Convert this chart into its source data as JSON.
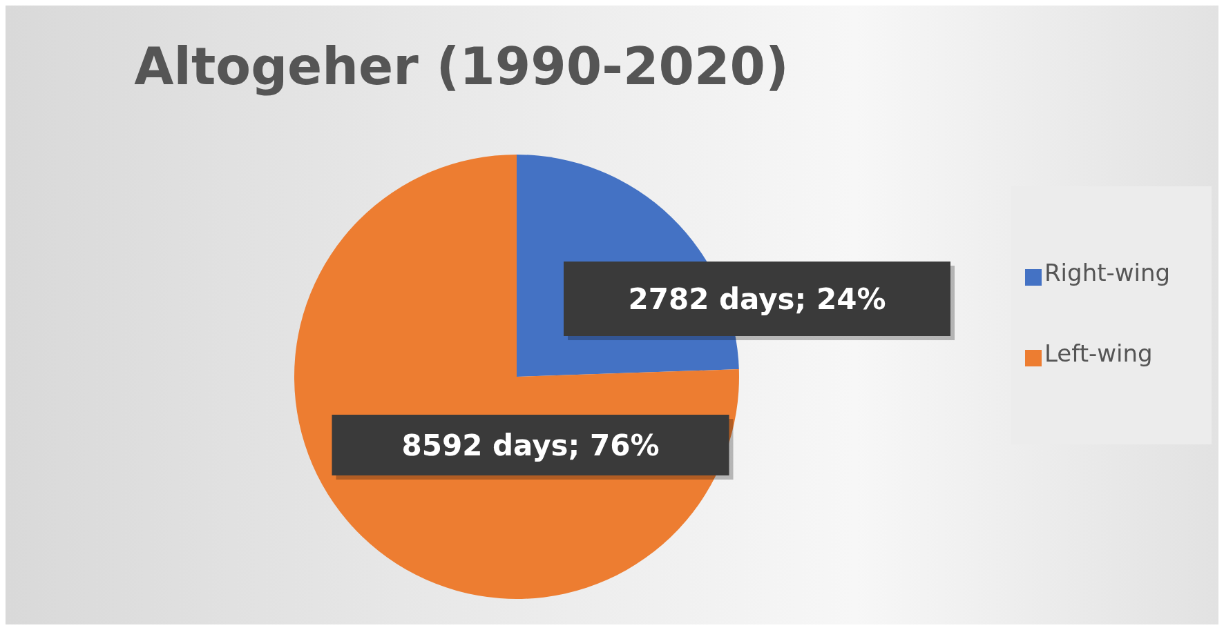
{
  "chart_data": {
    "type": "pie",
    "title": "Altogeher (1990-2020)",
    "categories": [
      "Right-wing",
      "Left-wing"
    ],
    "values": [
      2782,
      8592
    ],
    "colors": [
      "#4472c4",
      "#ed7d31"
    ],
    "value_labels": [
      "2782 days; 24%",
      "8592 days; 76%"
    ],
    "legend": "right"
  }
}
